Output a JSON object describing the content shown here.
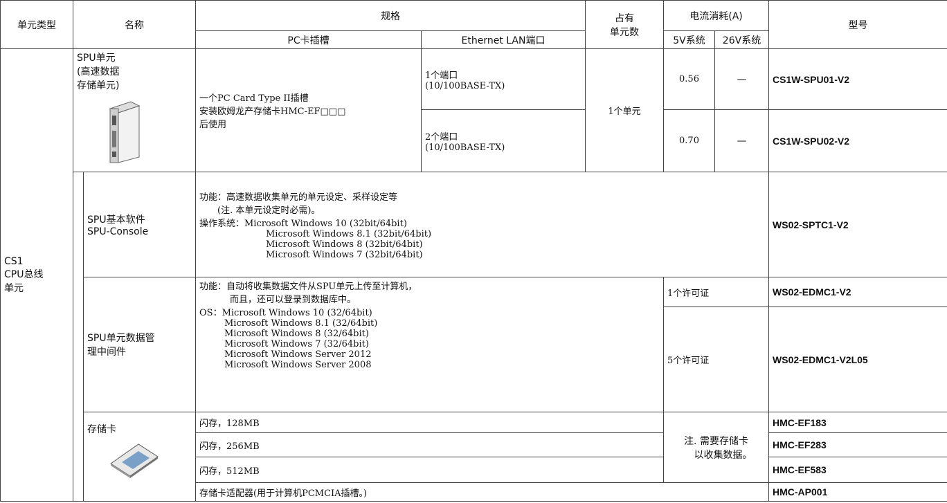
{
  "header": {
    "unit_type": "单元类型",
    "name": "名称",
    "spec": "规格",
    "pc_slot": "PC卡插槽",
    "ethernet": "Ethernet LAN端口",
    "occupied_units": [
      "占有",
      "单元数"
    ],
    "current": "电流消耗(A)",
    "v5": "5V系统",
    "v26": "26V系统",
    "model": "型号"
  },
  "unit_type": [
    "CS1",
    "CPU总线",
    "单元"
  ],
  "spu_unit": {
    "name": [
      "SPU单元",
      "(高速数据",
      "存储单元)"
    ],
    "pc_slot": [
      "一个PC Card Type II插槽",
      "安装欧姆龙产存储卡HMC-EF□□□",
      "后使用"
    ],
    "occupied": "1个单元",
    "variants": [
      {
        "ports": [
          "1个端口",
          "(10/100BASE-TX)"
        ],
        "current_5v": "0.56",
        "current_26v": "—",
        "model": "CS1W-SPU01-V2"
      },
      {
        "ports": [
          "2个端口",
          "(10/100BASE-TX)"
        ],
        "current_5v": "0.70",
        "current_26v": "—",
        "model": "CS1W-SPU02-V2"
      }
    ]
  },
  "software": {
    "name": [
      "SPU基本软件",
      "SPU-Console"
    ],
    "description": [
      "功能：高速数据收集单元的单元设定、采样设定等",
      "(注. 本单元设定时必需)。",
      "操作系统：Microsoft Windows 10 (32bit/64bit)",
      "Microsoft Windows 8.1 (32bit/64bit)",
      "Microsoft Windows 8 (32bit/64bit)",
      "Microsoft Windows 7 (32bit/64bit)"
    ],
    "model": "WS02-SPTC1-V2"
  },
  "middleware": {
    "name": [
      "SPU单元数据管",
      "理中间件"
    ],
    "description": [
      "功能：自动将收集数据文件从SPU单元上传至计算机，",
      "而且，还可以登录到数据库中。",
      "OS：Microsoft Windows 10 (32/64bit)",
      "Microsoft Windows 8.1 (32/64bit)",
      "Microsoft Windows 8 (32/64bit)",
      "Microsoft Windows 7 (32/64bit)",
      "Microsoft Windows Server 2012",
      "Microsoft Windows Server 2008"
    ],
    "licenses": [
      {
        "label": "1个许可证",
        "model": "WS02-EDMC1-V2"
      },
      {
        "label": "5个许可证",
        "model": "WS02-EDMC1-V2L05"
      }
    ]
  },
  "memory_card": {
    "name": "存储卡",
    "items": [
      {
        "description": "闪存，128MB",
        "model": "HMC-EF183"
      },
      {
        "description": "闪存，256MB",
        "model": "HMC-EF283"
      },
      {
        "description": "闪存，512MB",
        "model": "HMC-EF583"
      }
    ],
    "note": [
      "注. 需要存储卡",
      "以收集数据。"
    ]
  },
  "adapter": {
    "description": "存储卡适配器(用于计算机PCMCIA插槽。)",
    "model": "HMC-AP001"
  }
}
